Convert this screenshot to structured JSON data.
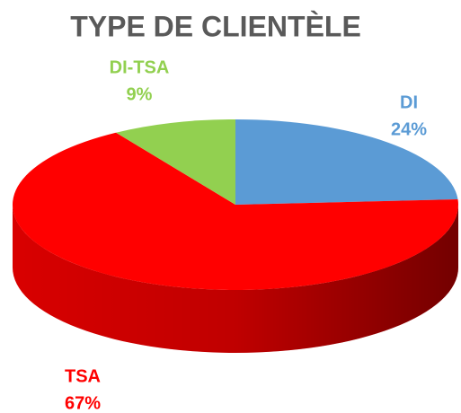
{
  "chart_data": {
    "type": "pie",
    "title": "TYPE DE CLIENTÈLE",
    "categories": [
      "DI",
      "TSA",
      "DI-TSA"
    ],
    "values": [
      24,
      67,
      9
    ],
    "value_labels": [
      "24%",
      "67%",
      "9%"
    ],
    "colors": [
      "#5b9bd5",
      "#ff0000",
      "#92d050"
    ]
  }
}
